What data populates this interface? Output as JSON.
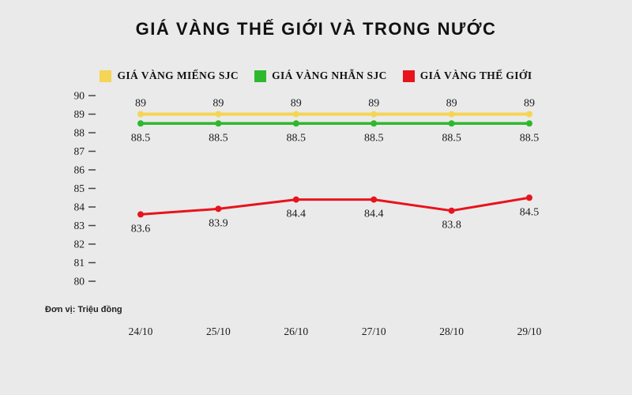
{
  "title": "GIÁ VÀNG THẾ GIỚI VÀ TRONG NƯỚC",
  "unit_note": "Đơn vị: Triệu đồng",
  "chart_data": {
    "type": "line",
    "categories": [
      "24/10",
      "25/10",
      "26/10",
      "27/10",
      "28/10",
      "29/10"
    ],
    "series": [
      {
        "name": "GIÁ VÀNG MIẾNG SJC",
        "color": "#f6d455",
        "values": [
          89,
          89,
          89,
          89,
          89,
          89
        ],
        "label_position": "above",
        "line_width": 4
      },
      {
        "name": "GIÁ VÀNG NHẪN SJC",
        "color": "#2eb82e",
        "values": [
          88.5,
          88.5,
          88.5,
          88.5,
          88.5,
          88.5
        ],
        "label_position": "below",
        "line_width": 3.5
      },
      {
        "name": "GIÁ VÀNG THẾ GIỚI",
        "color": "#e8131d",
        "values": [
          83.6,
          83.9,
          84.4,
          84.4,
          83.8,
          84.5
        ],
        "label_position": "below",
        "line_width": 3
      }
    ],
    "ylim": [
      80,
      90
    ],
    "yticks": [
      80,
      81,
      82,
      83,
      84,
      85,
      86,
      87,
      88,
      89,
      90
    ],
    "xlabel": "",
    "ylabel": "",
    "grid": false,
    "legend_position": "top",
    "background": "#eaeaea",
    "text_color": "#1a1a1a"
  }
}
